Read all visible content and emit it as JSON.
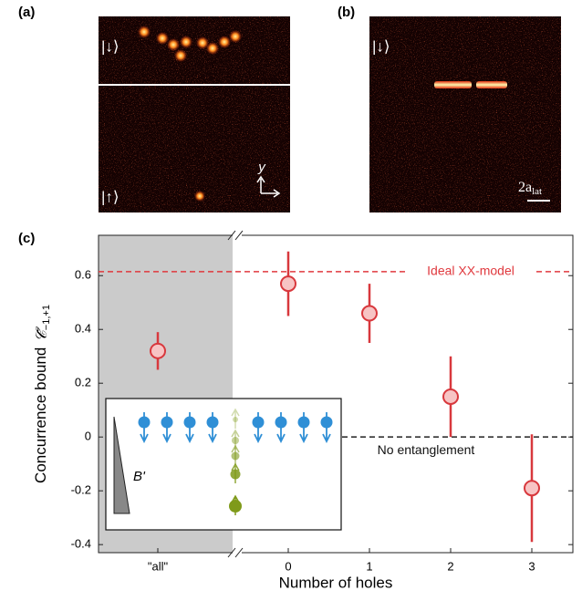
{
  "panel_labels": [
    "(a)",
    "(b)",
    "(c)"
  ],
  "image_a": {
    "top_state": "|↓⟩",
    "bottom_state": "|↑⟩",
    "axis_label": "y"
  },
  "image_b": {
    "top_state": "|↓⟩",
    "scale_bar": {
      "main": "2a",
      "sub": "lat"
    }
  },
  "inset": {
    "gradient_label": "B'"
  },
  "chart_data": {
    "type": "errorbar",
    "xlabel": "Number of holes",
    "ylabel": "Concurrence bound",
    "ylabel_symbol": {
      "main": "𝒞̃",
      "sub": "−1,+1"
    },
    "categories": [
      "\"all\"",
      "0",
      "1",
      "2",
      "3"
    ],
    "values": [
      0.32,
      0.57,
      0.46,
      0.15,
      -0.19
    ],
    "errors": [
      0.07,
      0.12,
      0.11,
      0.15,
      0.2
    ],
    "color": "#d8383d",
    "fill": "#f7c4c4",
    "ylim": [
      -0.43,
      0.75
    ],
    "yticks": [
      -0.4,
      -0.2,
      0,
      0.2,
      0.4,
      0.6
    ],
    "reference_lines": [
      {
        "value": 0.615,
        "label": "Ideal XX-model",
        "color": "#e0393e"
      },
      {
        "value": 0,
        "label": "No entanglement",
        "color": "#222222"
      }
    ]
  }
}
